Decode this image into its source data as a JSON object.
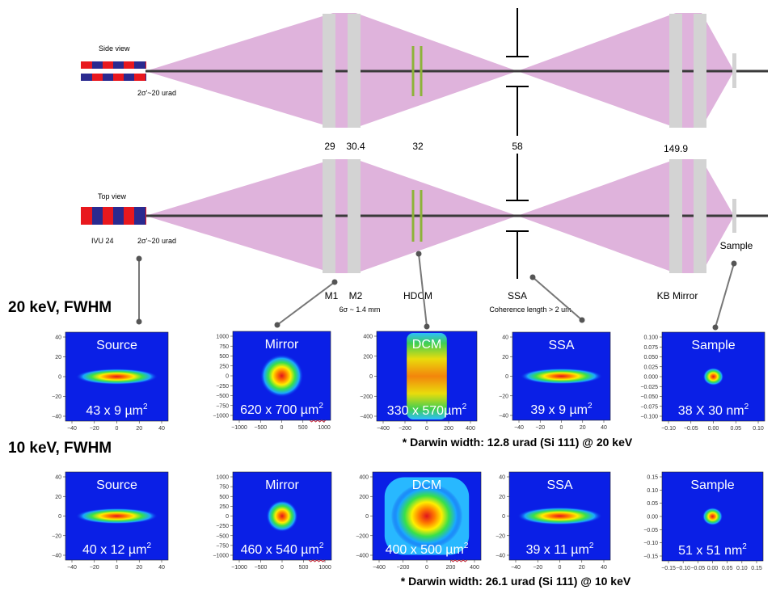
{
  "colors": {
    "beam_fill": "#dfb3dc",
    "optic_gray": "#d3d3d3",
    "hdcm_green": "#8db33a",
    "undulator_red": "#e8181e",
    "undulator_blue": "#2b2a8f",
    "axis_line": "#3a3a3a",
    "plot_bg": "#0a1fe6",
    "size_underline": "#cc3344"
  },
  "side_view": {
    "title": "Side view",
    "divergence": "2σ'~20 urad"
  },
  "top_view": {
    "title": "Top view",
    "source_name": "IVU 24",
    "divergence": "2σ'~20 urad"
  },
  "positions": {
    "m1": "29",
    "m2": "30.4",
    "hdcm": "32",
    "ssa": "58",
    "kb": "149.9"
  },
  "components": {
    "m1": "M1",
    "m2": "M2",
    "m2_note": "6σ ~ 1.4 mm",
    "hdcm": "HDCM",
    "ssa": "SSA",
    "ssa_note": "Coherence length > 2 um",
    "kb": "KB Mirror",
    "sample": "Sample"
  },
  "sections": [
    {
      "heading": "20 keV, FWHM",
      "footnote": "* Darwin width: 12.8 urad (Si 111) @ 20 keV",
      "plots": [
        {
          "title": "Source",
          "size": "43 x 9 µm",
          "sup": "2",
          "y_ticks": [
            "40",
            "20",
            "0",
            "−20",
            "−40"
          ],
          "x_ticks": [
            "−40",
            "−20",
            "0",
            "20",
            "40"
          ]
        },
        {
          "title": "Mirror",
          "size": "620 x 700 µm",
          "sup": "2",
          "y_ticks": [
            "1000",
            "750",
            "500",
            "250",
            "0",
            "−250",
            "−500",
            "−750",
            "−1000"
          ],
          "x_ticks": [
            "−1000",
            "−500",
            "0",
            "500",
            "1000"
          ]
        },
        {
          "title": "DCM",
          "size": "330 x 570µm",
          "sup": "2",
          "y_ticks": [
            "400",
            "200",
            "0",
            "−200",
            "−400"
          ],
          "x_ticks": [
            "−400",
            "−200",
            "0",
            "200",
            "400"
          ]
        },
        {
          "title": "SSA",
          "size": "39 x 9 µm",
          "sup": "2",
          "y_ticks": [
            "40",
            "20",
            "0",
            "−20",
            "−40"
          ],
          "x_ticks": [
            "−40",
            "−20",
            "0",
            "20",
            "40"
          ]
        },
        {
          "title": "Sample",
          "size": "38 X 30 nm",
          "sup": "2",
          "y_ticks": [
            "0.100",
            "0.075",
            "0.050",
            "0.025",
            "0.000",
            "−0.025",
            "−0.050",
            "−0.075",
            "−0.100"
          ],
          "x_ticks": [
            "−0.10",
            "−0.05",
            "0.00",
            "0.05",
            "0.10"
          ]
        }
      ]
    },
    {
      "heading": "10 keV, FWHM",
      "footnote": "* Darwin width: 26.1 urad (Si 111) @ 10 keV",
      "plots": [
        {
          "title": "Source",
          "size": "40 x 12 µm",
          "sup": "2",
          "y_ticks": [
            "40",
            "20",
            "0",
            "−20",
            "−40"
          ],
          "x_ticks": [
            "−40",
            "−20",
            "0",
            "20",
            "40"
          ]
        },
        {
          "title": "Mirror",
          "size": "460 x 540 µm",
          "sup": "2",
          "y_ticks": [
            "1000",
            "750",
            "500",
            "250",
            "0",
            "−250",
            "−500",
            "−750",
            "−1000"
          ],
          "x_ticks": [
            "−1000",
            "−500",
            "0",
            "500",
            "1000"
          ]
        },
        {
          "title": "DCM",
          "size": "400 x 500 µm",
          "sup": "2",
          "y_ticks": [
            "400",
            "200",
            "0",
            "−200",
            "−400"
          ],
          "x_ticks": [
            "−400",
            "−200",
            "0",
            "200",
            "400"
          ]
        },
        {
          "title": "SSA",
          "size": "39 x 11 µm",
          "sup": "2",
          "y_ticks": [
            "40",
            "20",
            "0",
            "−20",
            "−40"
          ],
          "x_ticks": [
            "−40",
            "−20",
            "0",
            "20",
            "40"
          ]
        },
        {
          "title": "Sample",
          "size": "51 x 51 nm",
          "sup": "2",
          "y_ticks": [
            "0.15",
            "0.10",
            "0.05",
            "0.00",
            "−0.05",
            "−0.10",
            "−0.15"
          ],
          "x_ticks": [
            "−0.15",
            "−0.10",
            "−0.05",
            "0.00",
            "0.05",
            "0.10",
            "0.15"
          ]
        }
      ]
    }
  ]
}
